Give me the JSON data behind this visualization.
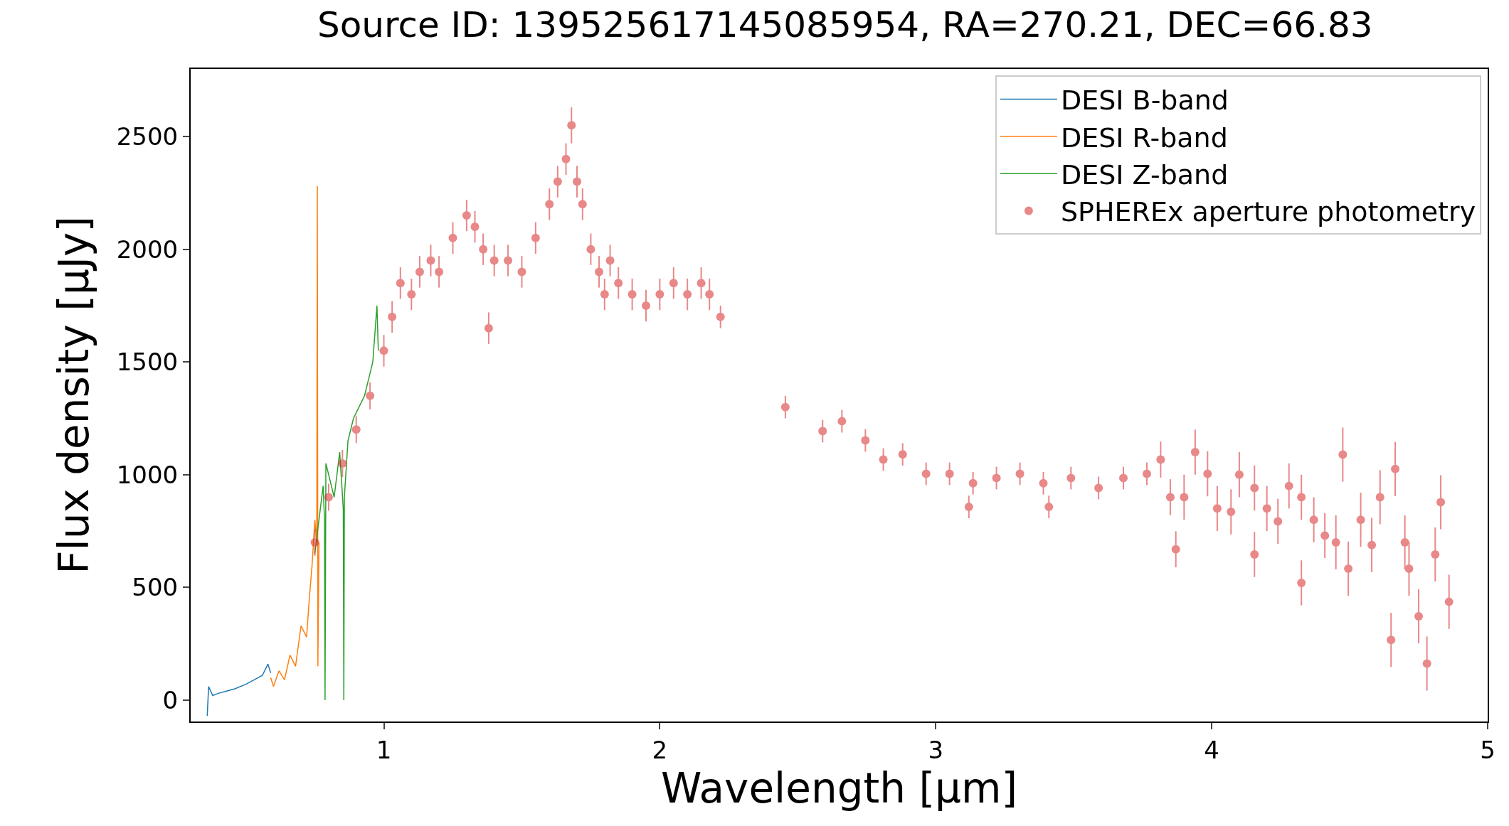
{
  "chart_data": {
    "type": "line",
    "title": "Source ID: 139525617145085954, RA=270.21, DEC=66.83",
    "xlabel": "Wavelength [µm]",
    "ylabel": "Flux density [µJy]",
    "xlim": [
      0.3,
      5.0
    ],
    "xticks": [
      1,
      2,
      3,
      4,
      5
    ],
    "ylim": [
      -95,
      2800
    ],
    "yticks": [
      0,
      500,
      1000,
      1500,
      2000,
      2500
    ],
    "grid": false,
    "legend": "top right",
    "series": [
      {
        "name": "DESI B-band",
        "color": "#1f77b4",
        "x": [
          0.36,
          0.365,
          0.38,
          0.4,
          0.43,
          0.46,
          0.5,
          0.53,
          0.56,
          0.58,
          0.59
        ],
        "values": [
          -70,
          60,
          20,
          30,
          40,
          50,
          70,
          90,
          110,
          160,
          120
        ]
      },
      {
        "name": "DESI R-band",
        "color": "#ff7f0e",
        "x": [
          0.59,
          0.6,
          0.62,
          0.64,
          0.66,
          0.68,
          0.7,
          0.72,
          0.73,
          0.74,
          0.75,
          0.757,
          0.759,
          0.761,
          0.765
        ],
        "values": [
          100,
          60,
          130,
          90,
          200,
          150,
          330,
          280,
          450,
          600,
          800,
          700,
          2280,
          150,
          700
        ]
      },
      {
        "name": "DESI Z-band",
        "color": "#2ca02c",
        "x": [
          0.75,
          0.77,
          0.78,
          0.785,
          0.787,
          0.79,
          0.82,
          0.83,
          0.84,
          0.853,
          0.855,
          0.857,
          0.87,
          0.89,
          0.91,
          0.93,
          0.95,
          0.96,
          0.975,
          0.98
        ],
        "values": [
          650,
          850,
          950,
          800,
          0,
          1050,
          900,
          1000,
          1100,
          850,
          0,
          900,
          1150,
          1250,
          1300,
          1350,
          1450,
          1500,
          1750,
          1550
        ]
      },
      {
        "name": "SPHEREx aperture photometry",
        "type": "scatter",
        "color": "#d62728",
        "marker": "circle",
        "x": [
          0.75,
          0.8,
          0.85,
          0.9,
          0.95,
          1.0,
          1.03,
          1.06,
          1.1,
          1.13,
          1.17,
          1.2,
          1.25,
          1.3,
          1.33,
          1.36,
          1.38,
          1.4,
          1.45,
          1.5,
          1.55,
          1.6,
          1.63,
          1.66,
          1.68,
          1.7,
          1.72,
          1.75,
          1.78,
          1.8,
          1.82,
          1.85,
          1.9,
          1.95,
          2.0,
          2.05,
          2.1,
          2.15,
          2.18,
          2.22,
          2.455,
          2.59,
          2.66,
          2.745,
          2.81,
          2.88,
          2.965,
          3.05,
          3.12,
          3.135,
          3.22,
          3.305,
          3.39,
          3.41,
          3.49,
          3.59,
          3.68,
          3.765,
          3.815,
          3.85,
          3.87,
          3.9,
          3.94,
          3.985,
          4.02,
          4.07,
          4.1,
          4.155,
          4.155,
          4.2,
          4.24,
          4.28,
          4.325,
          4.325,
          4.37,
          4.41,
          4.45,
          4.475,
          4.495,
          4.54,
          4.58,
          4.61,
          4.65,
          4.665,
          4.7,
          4.715,
          4.75,
          4.78,
          4.81,
          4.83,
          4.86
        ],
        "values": [
          700,
          900,
          1050,
          1200,
          1350,
          1550,
          1700,
          1850,
          1800,
          1900,
          1950,
          1900,
          2050,
          2150,
          2100,
          2000,
          1650,
          1950,
          1950,
          1900,
          2050,
          2200,
          2300,
          2400,
          2550,
          2300,
          2200,
          2000,
          1900,
          1800,
          1950,
          1850,
          1800,
          1750,
          1800,
          1850,
          1800,
          1850,
          1800,
          1700,
          1300,
          1193,
          1237,
          1152,
          1067,
          1090,
          1004,
          1004,
          857,
          962,
          985,
          1004,
          962,
          857,
          985,
          941,
          985,
          1004,
          1067,
          900,
          669,
          900,
          1100,
          1004,
          850,
          835,
          1000,
          941,
          646,
          850,
          793,
          950,
          900,
          520,
          800,
          730,
          700,
          1089,
          583,
          800,
          688,
          900,
          267,
          1025,
          700,
          583,
          372,
          162,
          646,
          878,
          436
        ],
        "errors": [
          60,
          60,
          60,
          60,
          60,
          70,
          70,
          70,
          70,
          70,
          70,
          70,
          70,
          70,
          70,
          70,
          70,
          70,
          70,
          70,
          70,
          70,
          70,
          70,
          80,
          70,
          70,
          70,
          70,
          70,
          70,
          70,
          70,
          70,
          70,
          70,
          70,
          70,
          70,
          50,
          50,
          50,
          50,
          50,
          50,
          50,
          50,
          50,
          50,
          50,
          50,
          50,
          50,
          50,
          50,
          50,
          50,
          50,
          80,
          80,
          80,
          100,
          100,
          100,
          100,
          100,
          100,
          100,
          100,
          100,
          100,
          100,
          100,
          100,
          100,
          100,
          120,
          120,
          120,
          120,
          120,
          120,
          120,
          120,
          120,
          120,
          120,
          120,
          120,
          120,
          120
        ]
      }
    ]
  }
}
